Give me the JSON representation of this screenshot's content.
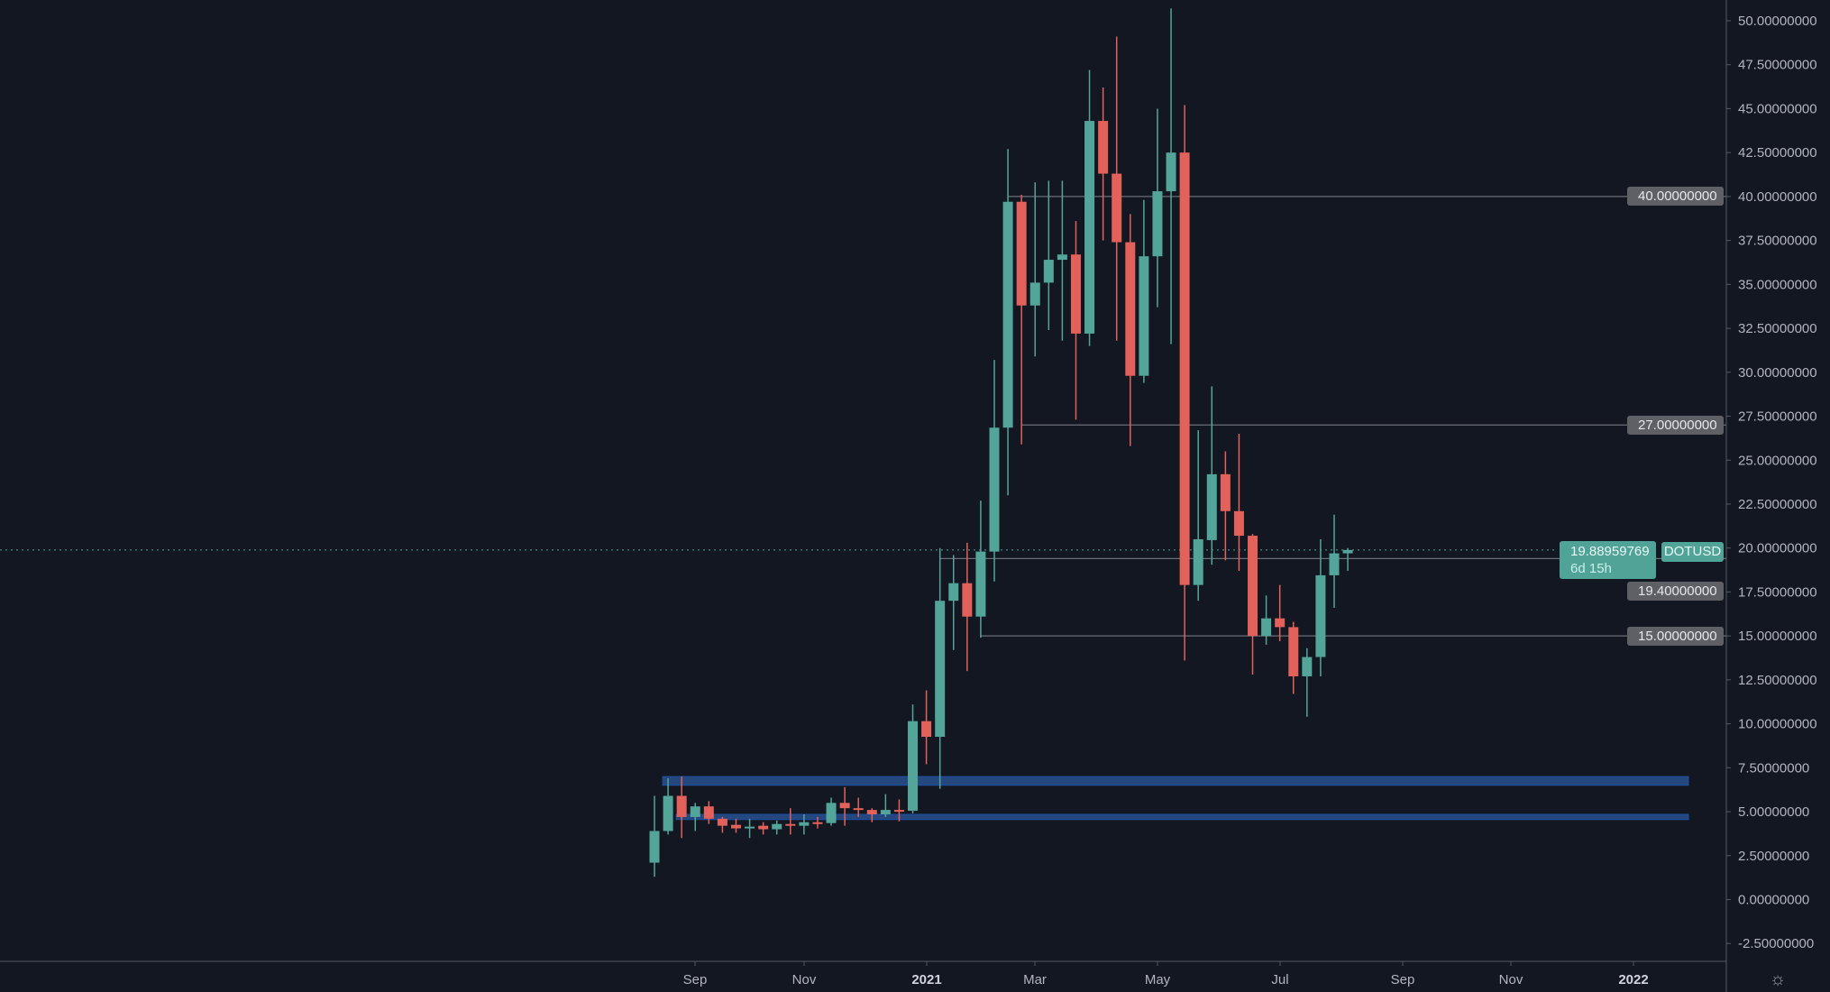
{
  "chart_data": {
    "type": "candlestick",
    "symbol": "DOTUSD",
    "interval": "weekly",
    "ylim": [
      -2.5,
      50
    ],
    "y_ticks": [
      "50.00000000",
      "47.50000000",
      "45.00000000",
      "42.50000000",
      "40.00000000",
      "37.50000000",
      "35.00000000",
      "32.50000000",
      "30.00000000",
      "27.50000000",
      "25.00000000",
      "22.50000000",
      "20.00000000",
      "17.50000000",
      "15.00000000",
      "12.50000000",
      "10.00000000",
      "7.50000000",
      "5.00000000",
      "2.50000000",
      "0.00000000",
      "-2.50000000"
    ],
    "x_ticks": [
      {
        "label": "Sep",
        "bold": false
      },
      {
        "label": "Nov",
        "bold": false
      },
      {
        "label": "2021",
        "bold": true
      },
      {
        "label": "Mar",
        "bold": false
      },
      {
        "label": "May",
        "bold": false
      },
      {
        "label": "Jul",
        "bold": false
      },
      {
        "label": "Sep",
        "bold": false
      },
      {
        "label": "Nov",
        "bold": false
      },
      {
        "label": "2022",
        "bold": true
      }
    ],
    "candles_ohlc": [
      [
        2.1,
        5.9,
        1.3,
        3.9
      ],
      [
        3.9,
        6.9,
        3.7,
        5.9
      ],
      [
        5.9,
        7.0,
        3.5,
        4.7
      ],
      [
        4.7,
        5.5,
        3.9,
        5.3
      ],
      [
        5.3,
        5.6,
        4.3,
        4.6
      ],
      [
        4.6,
        4.7,
        3.8,
        4.2
      ],
      [
        4.25,
        4.6,
        3.8,
        4.05
      ],
      [
        4.05,
        4.6,
        3.5,
        4.15
      ],
      [
        4.2,
        4.4,
        3.7,
        4.0
      ],
      [
        4.0,
        4.5,
        3.7,
        4.3
      ],
      [
        4.3,
        5.2,
        3.7,
        4.2
      ],
      [
        4.2,
        4.85,
        3.7,
        4.4
      ],
      [
        4.4,
        4.7,
        4.05,
        4.35
      ],
      [
        4.35,
        5.8,
        4.2,
        5.5
      ],
      [
        5.5,
        6.4,
        4.2,
        5.2
      ],
      [
        5.2,
        5.8,
        4.7,
        5.15
      ],
      [
        5.1,
        5.2,
        4.4,
        4.85
      ],
      [
        4.85,
        6.0,
        4.7,
        5.1
      ],
      [
        5.1,
        5.7,
        4.45,
        5.05
      ],
      [
        5.05,
        11.1,
        4.9,
        10.15
      ],
      [
        10.15,
        11.9,
        7.7,
        9.26
      ],
      [
        9.26,
        20.0,
        6.3,
        17.0
      ],
      [
        17.0,
        19.6,
        14.2,
        18.0
      ],
      [
        18.0,
        20.3,
        13.0,
        16.1
      ],
      [
        16.1,
        22.7,
        14.9,
        19.8
      ],
      [
        19.8,
        30.7,
        18.1,
        26.85
      ],
      [
        26.85,
        42.7,
        23.0,
        39.7
      ],
      [
        39.7,
        40.1,
        25.9,
        33.8
      ],
      [
        33.8,
        40.8,
        30.9,
        35.1
      ],
      [
        35.1,
        40.9,
        32.4,
        36.4
      ],
      [
        36.4,
        40.9,
        31.8,
        36.7
      ],
      [
        36.7,
        38.6,
        27.3,
        32.2
      ],
      [
        32.2,
        47.2,
        31.5,
        44.3
      ],
      [
        44.3,
        46.2,
        37.5,
        41.3
      ],
      [
        41.3,
        49.1,
        31.8,
        37.4
      ],
      [
        37.4,
        39.0,
        25.8,
        29.8
      ],
      [
        29.8,
        39.8,
        29.4,
        36.6
      ],
      [
        36.6,
        45.0,
        33.7,
        40.3
      ],
      [
        40.3,
        50.7,
        31.6,
        42.5
      ],
      [
        42.5,
        45.2,
        13.6,
        17.9
      ],
      [
        17.9,
        26.7,
        17.0,
        20.5
      ],
      [
        20.45,
        29.2,
        19.05,
        24.2
      ],
      [
        24.2,
        25.5,
        19.3,
        22.1
      ],
      [
        22.1,
        26.5,
        18.7,
        20.7
      ],
      [
        20.7,
        20.8,
        12.8,
        15.0
      ],
      [
        15.0,
        17.3,
        14.5,
        16.0
      ],
      [
        16.0,
        17.9,
        14.7,
        15.5
      ],
      [
        15.5,
        15.8,
        11.7,
        12.7
      ],
      [
        12.7,
        14.3,
        10.4,
        13.8
      ],
      [
        13.8,
        20.5,
        12.7,
        18.45
      ],
      [
        18.45,
        21.9,
        16.6,
        19.7
      ],
      [
        19.7,
        20.0,
        18.7,
        19.89
      ]
    ],
    "horizontal_levels": [
      {
        "price": 40.0,
        "label": "40.00000000",
        "from_candle": 26
      },
      {
        "price": 27.0,
        "label": "27.00000000",
        "from_candle": 27
      },
      {
        "price": 19.4,
        "label": "19.40000000",
        "from_candle": 21
      },
      {
        "price": 15.0,
        "label": "15.00000000",
        "from_candle": 24
      }
    ],
    "zones": [
      {
        "low": 6.5,
        "high": 7.0,
        "from_candle": 1
      },
      {
        "low": 4.55,
        "high": 4.85,
        "from_candle": 2
      }
    ],
    "last_price": 19.88959769,
    "last_price_label": "19.88959769",
    "countdown": "6d 15h",
    "colors": {
      "background": "#131722",
      "up": "#53a59a",
      "down": "#e2615a",
      "zone": "#24477e",
      "level": "#6b6e76",
      "text": "#b2b5be"
    }
  },
  "icons": {
    "settings": "gear-icon"
  }
}
